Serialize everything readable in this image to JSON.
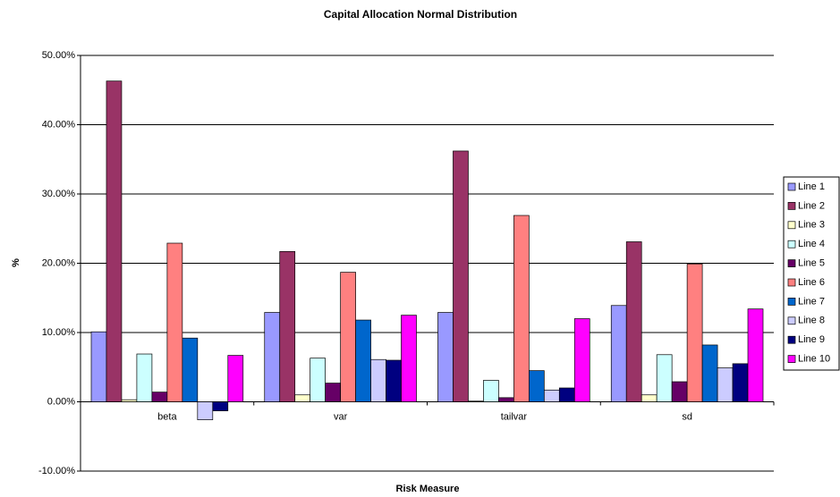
{
  "chart_data": {
    "type": "bar",
    "title": "Capital Allocation Normal Distribution",
    "x_label": "Risk Measure",
    "y_label": "%",
    "categories": [
      "beta",
      "var",
      "tailvar",
      "sd"
    ],
    "series": [
      {
        "name": "Line 1",
        "color": "#9999ff",
        "values": [
          10.1,
          12.9,
          12.9,
          13.9
        ]
      },
      {
        "name": "Line 2",
        "color": "#993366",
        "values": [
          46.3,
          21.7,
          36.2,
          23.1
        ]
      },
      {
        "name": "Line 3",
        "color": "#ffffcc",
        "values": [
          0.3,
          1.0,
          0.1,
          1.0
        ]
      },
      {
        "name": "Line 4",
        "color": "#ccffff",
        "values": [
          6.9,
          6.3,
          3.1,
          6.8
        ]
      },
      {
        "name": "Line 5",
        "color": "#660066",
        "values": [
          1.4,
          2.7,
          0.6,
          2.9
        ]
      },
      {
        "name": "Line 6",
        "color": "#ff8080",
        "values": [
          22.9,
          18.7,
          26.9,
          19.9
        ]
      },
      {
        "name": "Line 7",
        "color": "#0066cc",
        "values": [
          9.2,
          11.8,
          4.5,
          8.2
        ]
      },
      {
        "name": "Line 8",
        "color": "#ccccff",
        "values": [
          -2.6,
          6.1,
          1.7,
          4.9
        ]
      },
      {
        "name": "Line 9",
        "color": "#000080",
        "values": [
          -1.3,
          6.0,
          2.0,
          5.5
        ]
      },
      {
        "name": "Line 10",
        "color": "#ff00ff",
        "values": [
          6.7,
          12.5,
          12.0,
          13.4
        ]
      }
    ],
    "ylim": [
      -10,
      50
    ],
    "yticks": [
      {
        "value": -10,
        "label": "-10.00%"
      },
      {
        "value": 0,
        "label": "0.00%"
      },
      {
        "value": 10,
        "label": "10.00%"
      },
      {
        "value": 20,
        "label": "20.00%"
      },
      {
        "value": 30,
        "label": "30.00%"
      },
      {
        "value": 40,
        "label": "40.00%"
      },
      {
        "value": 50,
        "label": "50.00%"
      }
    ],
    "grid": true,
    "legend": "right"
  }
}
